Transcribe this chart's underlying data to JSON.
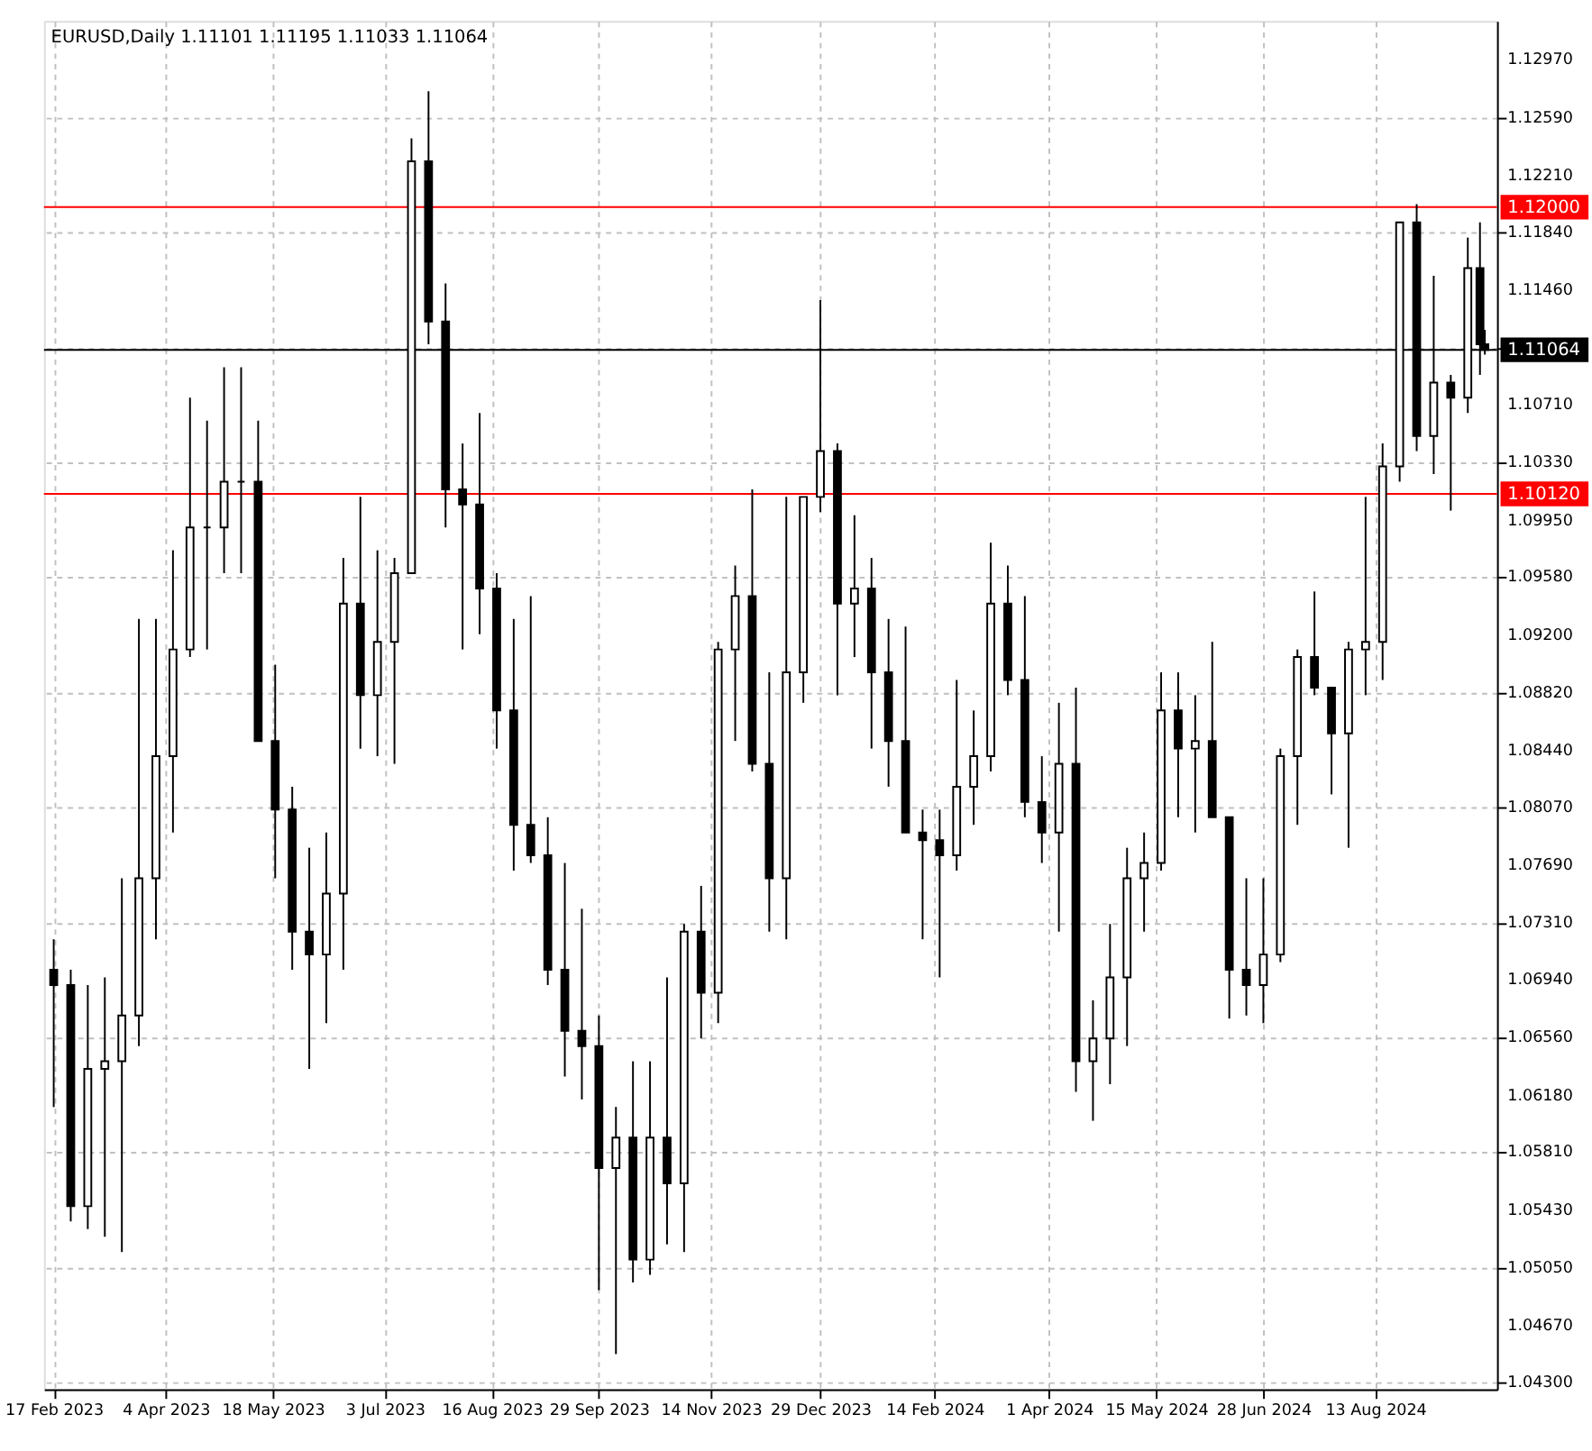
{
  "chart_data": {
    "type": "candlestick",
    "title": "EURUSD,Daily  1.11101 1.11195 1.11033 1.11064",
    "color": "#000000",
    "grid": true,
    "x": [
      "2023-02-17",
      "2023-02-24",
      "2023-03-03",
      "2023-03-10",
      "2023-03-17",
      "2023-03-24",
      "2023-03-31",
      "2023-04-07",
      "2023-04-14",
      "2023-04-21",
      "2023-04-28",
      "2023-05-05",
      "2023-05-12",
      "2023-05-19",
      "2023-05-26",
      "2023-06-02",
      "2023-06-09",
      "2023-06-16",
      "2023-06-23",
      "2023-06-30",
      "2023-07-07",
      "2023-07-14",
      "2023-07-21",
      "2023-07-28",
      "2023-08-04",
      "2023-08-11",
      "2023-08-18",
      "2023-08-25",
      "2023-09-01",
      "2023-09-08",
      "2023-09-15",
      "2023-09-22",
      "2023-09-29",
      "2023-10-06",
      "2023-10-13",
      "2023-10-20",
      "2023-10-27",
      "2023-11-03",
      "2023-11-10",
      "2023-11-17",
      "2023-11-24",
      "2023-12-01",
      "2023-12-08",
      "2023-12-15",
      "2023-12-22",
      "2023-12-29",
      "2024-01-05",
      "2024-01-12",
      "2024-01-19",
      "2024-01-26",
      "2024-02-02",
      "2024-02-09",
      "2024-02-16",
      "2024-02-23",
      "2024-03-01",
      "2024-03-08",
      "2024-03-15",
      "2024-03-22",
      "2024-03-29",
      "2024-04-05",
      "2024-04-12",
      "2024-04-19",
      "2024-04-26",
      "2024-05-03",
      "2024-05-10",
      "2024-05-17",
      "2024-05-24",
      "2024-05-31",
      "2024-06-07",
      "2024-06-14",
      "2024-06-21",
      "2024-06-28",
      "2024-07-05",
      "2024-07-12",
      "2024-07-19",
      "2024-07-26",
      "2024-08-02",
      "2024-08-09",
      "2024-08-16",
      "2024-08-23",
      "2024-08-30",
      "2024-09-06",
      "2024-09-13",
      "2024-09-20",
      "2024-09-25",
      "2024-09-27"
    ],
    "ohlc": [
      [
        1.07,
        1.072,
        1.061,
        1.069
      ],
      [
        1.069,
        1.07,
        1.0535,
        1.0545
      ],
      [
        1.0545,
        1.069,
        1.053,
        1.0635
      ],
      [
        1.0635,
        1.0695,
        1.0525,
        1.064
      ],
      [
        1.064,
        1.076,
        1.0515,
        1.067
      ],
      [
        1.067,
        1.093,
        1.065,
        1.076
      ],
      [
        1.076,
        1.093,
        1.072,
        1.084
      ],
      [
        1.084,
        1.0975,
        1.079,
        1.091
      ],
      [
        1.091,
        1.1075,
        1.0905,
        1.099
      ],
      [
        1.099,
        1.106,
        1.091,
        1.099
      ],
      [
        1.099,
        1.1095,
        1.096,
        1.102
      ],
      [
        1.102,
        1.1095,
        1.096,
        1.102
      ],
      [
        1.102,
        1.106,
        1.085,
        1.085
      ],
      [
        1.085,
        1.09,
        1.076,
        1.0805
      ],
      [
        1.0805,
        1.082,
        1.07,
        1.0725
      ],
      [
        1.0725,
        1.078,
        1.0635,
        1.071
      ],
      [
        1.071,
        1.079,
        1.0665,
        1.075
      ],
      [
        1.075,
        1.097,
        1.07,
        1.094
      ],
      [
        1.094,
        1.101,
        1.0845,
        1.088
      ],
      [
        1.088,
        1.0975,
        1.084,
        1.0915
      ],
      [
        1.0915,
        1.097,
        1.0835,
        1.096
      ],
      [
        1.096,
        1.1245,
        1.096,
        1.123
      ],
      [
        1.123,
        1.1276,
        1.111,
        1.1125
      ],
      [
        1.1125,
        1.115,
        1.099,
        1.1015
      ],
      [
        1.1015,
        1.1045,
        1.091,
        1.1005
      ],
      [
        1.1005,
        1.1065,
        1.092,
        1.095
      ],
      [
        1.095,
        1.096,
        1.0845,
        1.087
      ],
      [
        1.087,
        1.093,
        1.0765,
        1.0795
      ],
      [
        1.0795,
        1.0945,
        1.077,
        1.0775
      ],
      [
        1.0775,
        1.08,
        1.069,
        1.07
      ],
      [
        1.07,
        1.077,
        1.063,
        1.066
      ],
      [
        1.066,
        1.074,
        1.0615,
        1.065
      ],
      [
        1.065,
        1.067,
        1.049,
        1.057
      ],
      [
        1.057,
        1.061,
        1.0448,
        1.059
      ],
      [
        1.059,
        1.064,
        1.0495,
        1.051
      ],
      [
        1.051,
        1.064,
        1.05,
        1.059
      ],
      [
        1.059,
        1.0695,
        1.052,
        1.056
      ],
      [
        1.056,
        1.073,
        1.0515,
        1.0725
      ],
      [
        1.0725,
        1.0755,
        1.0655,
        1.0685
      ],
      [
        1.0685,
        1.0915,
        1.0665,
        1.091
      ],
      [
        1.091,
        1.0965,
        1.085,
        1.0945
      ],
      [
        1.0945,
        1.1015,
        1.083,
        1.0835
      ],
      [
        1.0835,
        1.0895,
        1.0725,
        1.076
      ],
      [
        1.076,
        1.101,
        1.072,
        1.0895
      ],
      [
        1.0895,
        1.101,
        1.0875,
        1.101
      ],
      [
        1.101,
        1.1139,
        1.1,
        1.104
      ],
      [
        1.104,
        1.1045,
        1.088,
        1.094
      ],
      [
        1.094,
        1.0998,
        1.0905,
        1.095
      ],
      [
        1.095,
        1.097,
        1.0845,
        1.0895
      ],
      [
        1.0895,
        1.093,
        1.082,
        1.085
      ],
      [
        1.085,
        1.0925,
        1.079,
        1.079
      ],
      [
        1.079,
        1.0805,
        1.072,
        1.0785
      ],
      [
        1.0785,
        1.0805,
        1.0695,
        1.0775
      ],
      [
        1.0775,
        1.089,
        1.0765,
        1.082
      ],
      [
        1.082,
        1.087,
        1.0795,
        1.084
      ],
      [
        1.084,
        1.098,
        1.083,
        1.094
      ],
      [
        1.094,
        1.0965,
        1.088,
        1.089
      ],
      [
        1.089,
        1.0945,
        1.08,
        1.081
      ],
      [
        1.081,
        1.084,
        1.077,
        1.079
      ],
      [
        1.079,
        1.0875,
        1.0725,
        1.0835
      ],
      [
        1.0835,
        1.0885,
        1.062,
        1.064
      ],
      [
        1.064,
        1.068,
        1.0601,
        1.0655
      ],
      [
        1.0655,
        1.073,
        1.0625,
        1.0695
      ],
      [
        1.0695,
        1.078,
        1.065,
        1.076
      ],
      [
        1.076,
        1.079,
        1.0725,
        1.077
      ],
      [
        1.077,
        1.0895,
        1.0765,
        1.087
      ],
      [
        1.087,
        1.0895,
        1.08,
        1.0845
      ],
      [
        1.0845,
        1.088,
        1.079,
        1.085
      ],
      [
        1.085,
        1.0915,
        1.08,
        1.08
      ],
      [
        1.08,
        1.08,
        1.0668,
        1.07
      ],
      [
        1.07,
        1.076,
        1.067,
        1.069
      ],
      [
        1.069,
        1.076,
        1.0665,
        1.071
      ],
      [
        1.071,
        1.0845,
        1.0705,
        1.084
      ],
      [
        1.084,
        1.091,
        1.0795,
        1.0905
      ],
      [
        1.0905,
        1.0948,
        1.088,
        1.0885
      ],
      [
        1.0885,
        1.0885,
        1.0815,
        1.0855
      ],
      [
        1.0855,
        1.0915,
        1.078,
        1.091
      ],
      [
        1.091,
        1.101,
        1.088,
        1.0915
      ],
      [
        1.0915,
        1.1045,
        1.089,
        1.103
      ],
      [
        1.103,
        1.119,
        1.102,
        1.119
      ],
      [
        1.119,
        1.1202,
        1.104,
        1.105
      ],
      [
        1.105,
        1.1155,
        1.1025,
        1.1085
      ],
      [
        1.1085,
        1.109,
        1.1001,
        1.1075
      ],
      [
        1.1075,
        1.118,
        1.1065,
        1.116
      ],
      [
        1.116,
        1.119,
        1.109,
        1.111
      ],
      [
        1.11101,
        1.11195,
        1.11033,
        1.11064
      ]
    ],
    "xlim": [
      "2023-02-13",
      "2024-10-02"
    ],
    "xticks": [
      {
        "value": "2023-02-17",
        "label": "17 Feb 2023"
      },
      {
        "value": "2023-04-04",
        "label": "4 Apr 2023"
      },
      {
        "value": "2023-05-18",
        "label": "18 May 2023"
      },
      {
        "value": "2023-07-03",
        "label": "3 Jul 2023"
      },
      {
        "value": "2023-08-16",
        "label": "16 Aug 2023"
      },
      {
        "value": "2023-09-29",
        "label": "29 Sep 2023"
      },
      {
        "value": "2023-11-14",
        "label": "14 Nov 2023"
      },
      {
        "value": "2023-12-29",
        "label": "29 Dec 2023"
      },
      {
        "value": "2024-02-14",
        "label": "14 Feb 2024"
      },
      {
        "value": "2024-04-01",
        "label": "1 Apr 2024"
      },
      {
        "value": "2024-05-15",
        "label": "15 May 2024"
      },
      {
        "value": "2024-06-28",
        "label": "28 Jun 2024"
      },
      {
        "value": "2024-08-13",
        "label": "13 Aug 2024"
      }
    ],
    "ylim": [
      1.0425,
      1.1322
    ],
    "yticks": [
      {
        "value": 1.1297,
        "label": "1.12970"
      },
      {
        "value": 1.1259,
        "label": "1.12590"
      },
      {
        "value": 1.1221,
        "label": "1.12210"
      },
      {
        "value": 1.1184,
        "label": "1.11840"
      },
      {
        "value": 1.1146,
        "label": "1.11460"
      },
      {
        "value": 1.1108,
        "label": null
      },
      {
        "value": 1.1071,
        "label": "1.10710"
      },
      {
        "value": 1.1033,
        "label": "1.10330"
      },
      {
        "value": 1.0995,
        "label": "1.09950"
      },
      {
        "value": 1.0958,
        "label": "1.09580"
      },
      {
        "value": 1.092,
        "label": "1.09200"
      },
      {
        "value": 1.0882,
        "label": "1.08820"
      },
      {
        "value": 1.0844,
        "label": "1.08440"
      },
      {
        "value": 1.0807,
        "label": "1.08070"
      },
      {
        "value": 1.0769,
        "label": "1.07690"
      },
      {
        "value": 1.0731,
        "label": "1.07310"
      },
      {
        "value": 1.0694,
        "label": "1.06940"
      },
      {
        "value": 1.0656,
        "label": "1.06560"
      },
      {
        "value": 1.0618,
        "label": "1.06180"
      },
      {
        "value": 1.0581,
        "label": "1.05810"
      },
      {
        "value": 1.0543,
        "label": "1.05430"
      },
      {
        "value": 1.0505,
        "label": "1.05050"
      },
      {
        "value": 1.0467,
        "label": "1.04670"
      },
      {
        "value": 1.043,
        "label": "1.04300"
      }
    ],
    "ref_lines": [
      {
        "axis": "y",
        "value": 1.12,
        "label": "1.12000",
        "color": "#ff0000"
      },
      {
        "axis": "y",
        "value": 1.1012,
        "label": "1.10120",
        "color": "#ff0000"
      },
      {
        "axis": "y",
        "value": 1.11064,
        "label": "1.11064",
        "color": "#000000"
      }
    ]
  }
}
